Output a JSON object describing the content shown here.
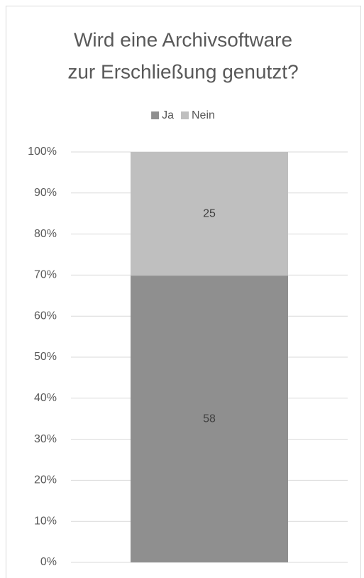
{
  "chart_data": {
    "type": "bar",
    "stacking": "percent",
    "title": [
      "Wird eine Archivsoftware",
      "zur Erschließung genutzt?"
    ],
    "categories": [
      null
    ],
    "series": [
      {
        "name": "Ja",
        "color": "#8f8f8f",
        "values": [
          58
        ]
      },
      {
        "name": "Nein",
        "color": "#bfbfbf",
        "values": [
          25
        ]
      }
    ],
    "ylim": [
      0,
      100
    ],
    "yticks": [
      {
        "value": 0,
        "label": "0%"
      },
      {
        "value": 10,
        "label": "10%"
      },
      {
        "value": 20,
        "label": "20%"
      },
      {
        "value": 30,
        "label": "30%"
      },
      {
        "value": 40,
        "label": "40%"
      },
      {
        "value": 50,
        "label": "50%"
      },
      {
        "value": 60,
        "label": "60%"
      },
      {
        "value": 70,
        "label": "70%"
      },
      {
        "value": 80,
        "label": "80%"
      },
      {
        "value": 90,
        "label": "90%"
      },
      {
        "value": 100,
        "label": "100%"
      }
    ],
    "grid": true,
    "legend": "top"
  }
}
